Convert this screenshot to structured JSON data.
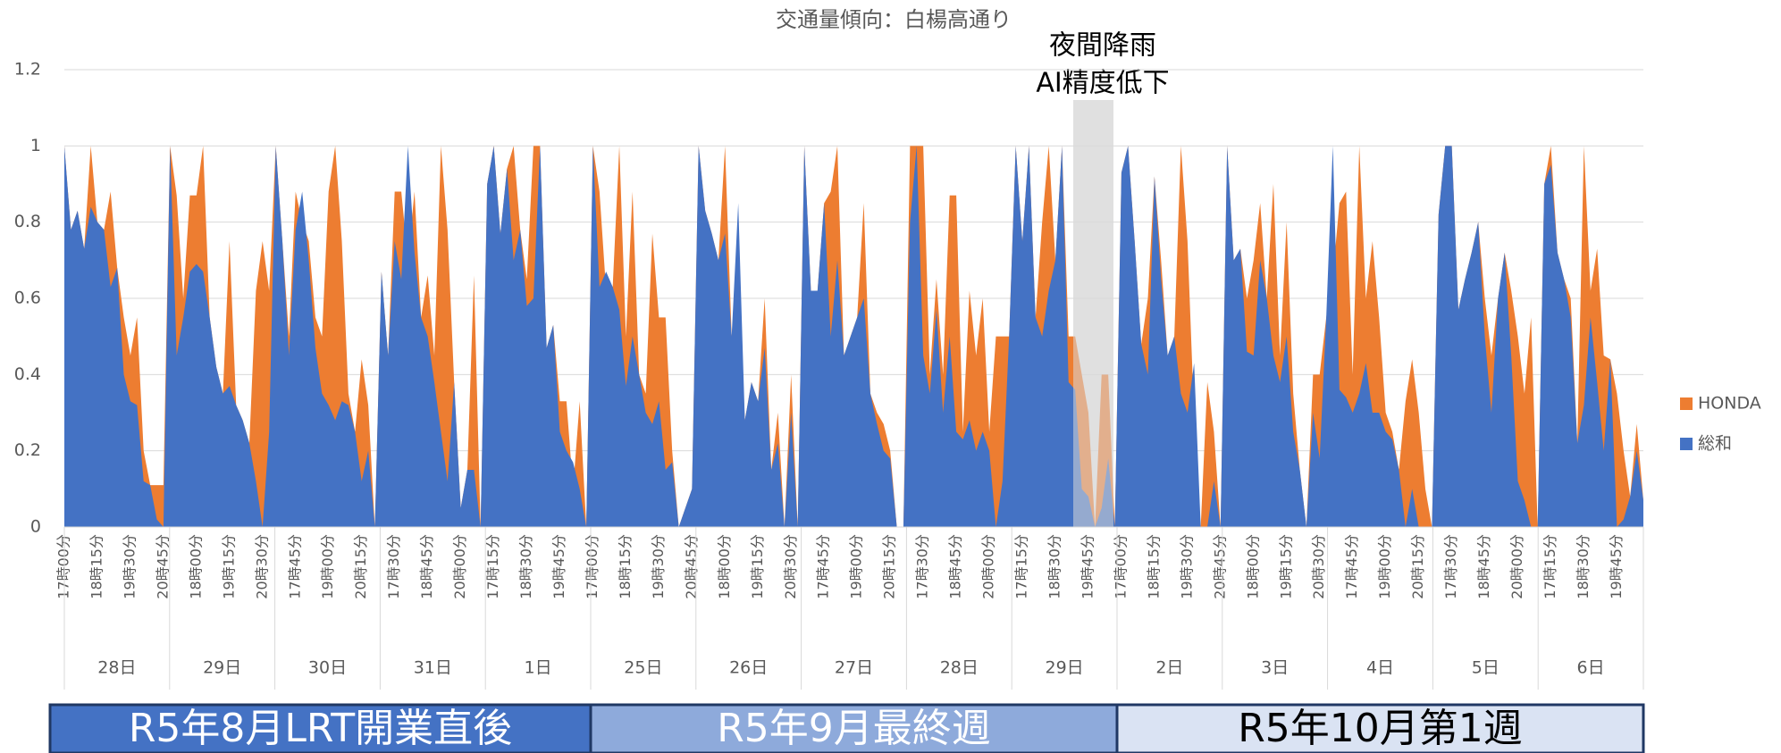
{
  "chart_data": {
    "type": "area",
    "title": "交通量傾向：白楊高通り",
    "annotation": [
      "夜間降雨",
      "AI精度低下"
    ],
    "categories": [
      "17時00分",
      null,
      null,
      null,
      null,
      "18時15分",
      null,
      null,
      null,
      null,
      "19時30分",
      null,
      null,
      null,
      null,
      "20時45分",
      null,
      null,
      null,
      null,
      "18時00分",
      null,
      null,
      null,
      null,
      "19時15分",
      null,
      null,
      null,
      null,
      "20時30分",
      null,
      null,
      null,
      null,
      "17時45分",
      null,
      null,
      null,
      null,
      "19時00分",
      null,
      null,
      null,
      null,
      "20時15分",
      null,
      null,
      null,
      null,
      "17時30分",
      null,
      null,
      null,
      null,
      "18時45分",
      null,
      null,
      null,
      null,
      "20時00分",
      null,
      null,
      null,
      null,
      "17時15分",
      null,
      null,
      null,
      null,
      "18時30分",
      null,
      null,
      null,
      null,
      "19時45分",
      null,
      null,
      null,
      null,
      "17時00分",
      null,
      null,
      null,
      null,
      "18時15分",
      null,
      null,
      null,
      null,
      "19時30分",
      null,
      null,
      null,
      null,
      "20時45分",
      null,
      null,
      null,
      null,
      "18時00分",
      null,
      null,
      null,
      null,
      "19時15分",
      null,
      null,
      null,
      null,
      "20時30分",
      null,
      null,
      null,
      null,
      "17時45分",
      null,
      null,
      null,
      null,
      "19時00分",
      null,
      null,
      null,
      null,
      "20時15分",
      null,
      null,
      null,
      null,
      "17時30分",
      null,
      null,
      null,
      null,
      "18時45分",
      null,
      null,
      null,
      null,
      "20時00分",
      null,
      null,
      null,
      null,
      "17時15分",
      null,
      null,
      null,
      null,
      "18時30分",
      null,
      null,
      null,
      null,
      "19時45分",
      null,
      null,
      null,
      null,
      "17時00分",
      null,
      null,
      null,
      null,
      "18時15分",
      null,
      null,
      null,
      null,
      "19時30分",
      null,
      null,
      null,
      null,
      "20時45分",
      null,
      null,
      null,
      null,
      "18時00分",
      null,
      null,
      null,
      null,
      "19時15分",
      null,
      null,
      null,
      null,
      "20時30分",
      null,
      null,
      null,
      null,
      "17時45分",
      null,
      null,
      null,
      null,
      "19時00分",
      null,
      null,
      null,
      null,
      "20時15分",
      null,
      null,
      null,
      null,
      "17時30分",
      null,
      null,
      null,
      null,
      "18時45分",
      null,
      null,
      null,
      null,
      "20時00分",
      null,
      null,
      null,
      null,
      "17時15分",
      null,
      null,
      null,
      null,
      "18時30分",
      null,
      null,
      null,
      null,
      "19時45分",
      null,
      null,
      null,
      null
    ],
    "days": [
      "28日",
      "29日",
      "30日",
      "31日",
      "1日",
      "25日",
      "26日",
      "27日",
      "28日",
      "29日",
      "2日",
      "3日",
      "4日",
      "5日",
      "6日"
    ],
    "periods": [
      {
        "label": "R5年8月LRT開業直後",
        "color": "#4472c4",
        "text_color": "#ffffff"
      },
      {
        "label": "R5年9月最終週",
        "color": "#8eaadb",
        "text_color": "#ffffff"
      },
      {
        "label": "R5年10月第1週",
        "color": "#dae3f3",
        "text_color": "#000000"
      }
    ],
    "series": [
      {
        "name": "HONDA",
        "color": "#ed7d31",
        "values": [
          1.0,
          0.78,
          0.83,
          0.73,
          1.0,
          0.8,
          0.78,
          0.88,
          0.68,
          0.55,
          0.45,
          0.55,
          0.2,
          0.11,
          0.11,
          0.11,
          1.0,
          0.87,
          0.6,
          0.87,
          0.87,
          1.0,
          0.55,
          0.42,
          0.35,
          0.75,
          0.32,
          0.28,
          0.22,
          0.62,
          0.75,
          0.62,
          1.0,
          0.75,
          0.5,
          0.88,
          0.8,
          0.75,
          0.55,
          0.5,
          0.88,
          1.0,
          0.75,
          0.35,
          0.25,
          0.44,
          0.32,
          0.0,
          0.67,
          0.45,
          0.88,
          0.88,
          0.7,
          0.88,
          0.55,
          0.66,
          0.45,
          1.0,
          0.78,
          0.38,
          0.05,
          0.15,
          0.66,
          0.0,
          0.9,
          1.0,
          0.77,
          0.94,
          1.0,
          0.78,
          0.65,
          1.0,
          1.0,
          0.47,
          0.53,
          0.33,
          0.33,
          0.1,
          0.33,
          0.0,
          1.0,
          0.88,
          0.62,
          0.63,
          1.0,
          0.5,
          0.88,
          0.4,
          0.35,
          0.77,
          0.55,
          0.55,
          0.2,
          0.0,
          0.05,
          0.1,
          1.0,
          0.83,
          0.77,
          0.7,
          1.0,
          0.5,
          0.7,
          0.28,
          0.38,
          0.33,
          0.6,
          0.15,
          0.3,
          0.0,
          0.4,
          0.0,
          1.0,
          0.62,
          0.62,
          0.85,
          0.88,
          1.0,
          0.45,
          0.5,
          0.55,
          0.85,
          0.35,
          0.3,
          0.27,
          0.2,
          0.0,
          0.0,
          1.0,
          1.0,
          1.0,
          0.4,
          0.65,
          0.4,
          0.87,
          0.87,
          0.25,
          0.62,
          0.45,
          0.6,
          0.25,
          0.5,
          0.5,
          0.5,
          1.0,
          0.75,
          1.0,
          0.55,
          0.8,
          1.0,
          0.7,
          1.0,
          0.5,
          0.5,
          0.4,
          0.3,
          0.0,
          0.4,
          0.4,
          0.0,
          0.93,
          1.0,
          0.75,
          0.48,
          0.6,
          0.92,
          0.7,
          0.45,
          0.5,
          1.0,
          0.75,
          0.29,
          0.0,
          0.38,
          0.25,
          0.0,
          1.0,
          0.7,
          0.73,
          0.6,
          0.7,
          0.85,
          0.6,
          0.9,
          0.45,
          0.8,
          0.35,
          0.15,
          0.0,
          0.4,
          0.4,
          0.55,
          0.66,
          0.85,
          0.88,
          0.4,
          1.0,
          0.6,
          0.75,
          0.55,
          0.3,
          0.25,
          0.15,
          0.33,
          0.44,
          0.3,
          0.1,
          0.0,
          0.82,
          1.0,
          1.0,
          0.57,
          0.65,
          0.72,
          0.8,
          0.6,
          0.45,
          0.6,
          0.72,
          0.62,
          0.5,
          0.35,
          0.55,
          0.0,
          0.9,
          1.0,
          0.72,
          0.65,
          0.6,
          0.22,
          1.0,
          0.62,
          0.73,
          0.45,
          0.44,
          0.35,
          0.2,
          0.08,
          0.27,
          0.07
        ]
      },
      {
        "name": "総和",
        "color": "#4472c4",
        "values": [
          1.0,
          0.78,
          0.83,
          0.73,
          0.84,
          0.8,
          0.78,
          0.63,
          0.68,
          0.4,
          0.33,
          0.32,
          0.12,
          0.11,
          0.02,
          0.0,
          1.0,
          0.45,
          0.55,
          0.67,
          0.69,
          0.67,
          0.55,
          0.42,
          0.35,
          0.37,
          0.32,
          0.28,
          0.22,
          0.12,
          0.0,
          0.25,
          1.0,
          0.75,
          0.45,
          0.78,
          0.88,
          0.7,
          0.47,
          0.35,
          0.32,
          0.28,
          0.33,
          0.32,
          0.25,
          0.12,
          0.2,
          0.0,
          0.67,
          0.45,
          0.75,
          0.65,
          1.0,
          0.72,
          0.55,
          0.5,
          0.38,
          0.25,
          0.12,
          0.38,
          0.05,
          0.15,
          0.15,
          0.0,
          0.9,
          1.0,
          0.77,
          0.94,
          0.7,
          0.78,
          0.58,
          0.6,
          1.0,
          0.47,
          0.53,
          0.25,
          0.2,
          0.17,
          0.1,
          0.0,
          1.0,
          0.63,
          0.67,
          0.63,
          0.57,
          0.37,
          0.5,
          0.4,
          0.3,
          0.27,
          0.33,
          0.15,
          0.17,
          0.0,
          0.05,
          0.1,
          1.0,
          0.83,
          0.77,
          0.7,
          0.77,
          0.5,
          0.85,
          0.28,
          0.38,
          0.33,
          0.47,
          0.15,
          0.22,
          0.0,
          0.3,
          0.0,
          1.0,
          0.62,
          0.62,
          0.85,
          0.5,
          0.7,
          0.45,
          0.5,
          0.55,
          0.6,
          0.35,
          0.27,
          0.2,
          0.18,
          0.0,
          0.0,
          0.8,
          1.0,
          0.45,
          0.35,
          0.57,
          0.3,
          0.5,
          0.25,
          0.23,
          0.28,
          0.2,
          0.25,
          0.2,
          0.0,
          0.12,
          0.5,
          1.0,
          0.75,
          1.0,
          0.55,
          0.5,
          0.62,
          0.7,
          1.0,
          0.38,
          0.36,
          0.1,
          0.08,
          0.0,
          0.05,
          0.18,
          0.0,
          0.93,
          1.0,
          0.75,
          0.48,
          0.4,
          0.92,
          0.65,
          0.45,
          0.5,
          0.35,
          0.3,
          0.43,
          0.0,
          0.0,
          0.12,
          0.0,
          1.0,
          0.7,
          0.73,
          0.46,
          0.45,
          0.7,
          0.6,
          0.45,
          0.38,
          0.5,
          0.25,
          0.15,
          0.0,
          0.3,
          0.18,
          0.55,
          1.0,
          0.36,
          0.34,
          0.3,
          0.35,
          0.43,
          0.3,
          0.3,
          0.25,
          0.23,
          0.15,
          0.0,
          0.1,
          0.0,
          0.0,
          0.0,
          0.82,
          1.0,
          1.0,
          0.57,
          0.65,
          0.72,
          0.8,
          0.5,
          0.3,
          0.6,
          0.72,
          0.45,
          0.12,
          0.07,
          0.0,
          0.0,
          0.9,
          0.95,
          0.72,
          0.65,
          0.55,
          0.22,
          0.32,
          0.55,
          0.38,
          0.2,
          0.44,
          0.0,
          0.02,
          0.08,
          0.2,
          0.07
        ]
      }
    ],
    "ylim": [
      0,
      1.2
    ],
    "yticks": [
      0,
      0.2,
      0.4,
      0.6,
      0.8,
      1,
      1.2
    ],
    "grid": true,
    "legend": "right"
  }
}
